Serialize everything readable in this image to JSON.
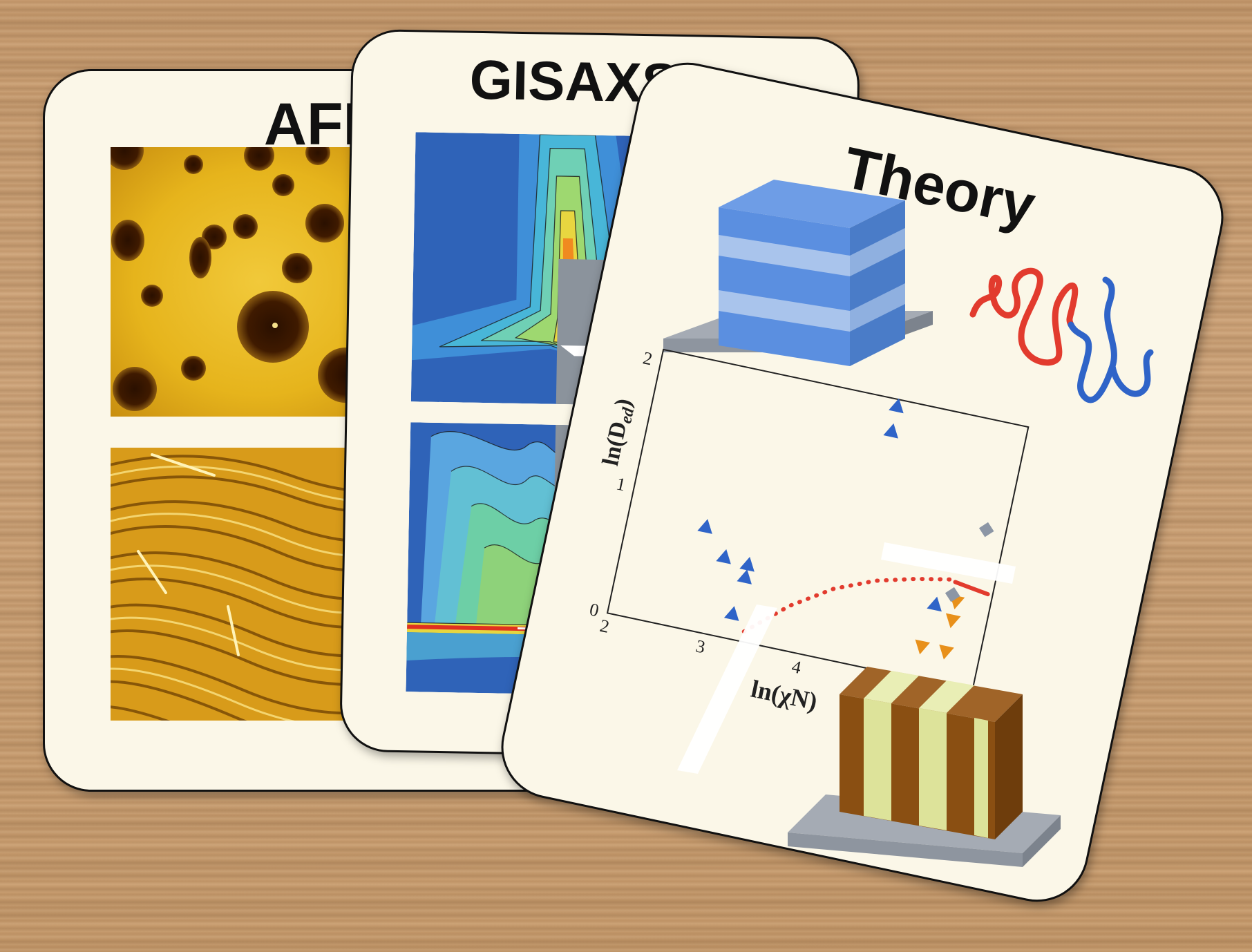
{
  "cards": {
    "afm": {
      "title": "AFM"
    },
    "gisaxs": {
      "title": "GISAXS"
    },
    "theory": {
      "title": "Theory",
      "chart": {
        "ylabel": "ln(D",
        "ylabel_sub": "ed",
        "ylabel_end": ")",
        "xlabel": "ln(χN)",
        "x_ticks": [
          "2",
          "3",
          "4"
        ],
        "y_ticks": [
          "0",
          "1",
          "2"
        ]
      }
    }
  },
  "colors": {
    "card_bg": "#fbf7e8",
    "afm_yellow": "#e8b51f",
    "gisaxs_blue": "#2f63b8",
    "lamella_blue": "#5b8fe0",
    "lamella_brown": "#8a4f12",
    "lamella_green": "#dde39a",
    "substrate_gray": "#9aa1ab",
    "chain_red": "#e23b2e",
    "chain_blue": "#2f64c8",
    "marker_orange": "#e8901a",
    "marker_gray": "#8c96a5"
  },
  "chart_data": {
    "type": "scatter",
    "xlim": [
      2,
      5.8
    ],
    "ylim": [
      0,
      2.1
    ],
    "series": [
      {
        "marker": "triangle-up",
        "color": "#2f64c8",
        "x": [
          2.8,
          3.05,
          3.3,
          3.3,
          3.25,
          4.45,
          4.45,
          5.25
        ],
        "y": [
          0.82,
          0.62,
          0.6,
          0.5,
          0.2,
          2.05,
          1.85,
          0.6
        ]
      },
      {
        "marker": "triangle-down",
        "color": "#e8901a",
        "x": [
          5.45,
          5.45,
          5.2,
          5.45,
          5.3
        ],
        "y": [
          0.65,
          0.5,
          0.25,
          0.25,
          -0.1
        ]
      },
      {
        "marker": "diamond",
        "color": "#8c96a5",
        "x": [
          5.6,
          5.4
        ],
        "y": [
          1.25,
          0.7
        ]
      }
    ],
    "curves": [
      {
        "style": "dotted",
        "color": "#e23b2e",
        "x": [
          3.4,
          3.8,
          4.2,
          4.6,
          5.0,
          5.4
        ],
        "y": [
          0.08,
          0.35,
          0.55,
          0.68,
          0.76,
          0.82
        ]
      },
      {
        "style": "solid",
        "color": "#e23b2e",
        "x": [
          5.4,
          5.75
        ],
        "y": [
          0.8,
          0.76
        ]
      }
    ]
  }
}
